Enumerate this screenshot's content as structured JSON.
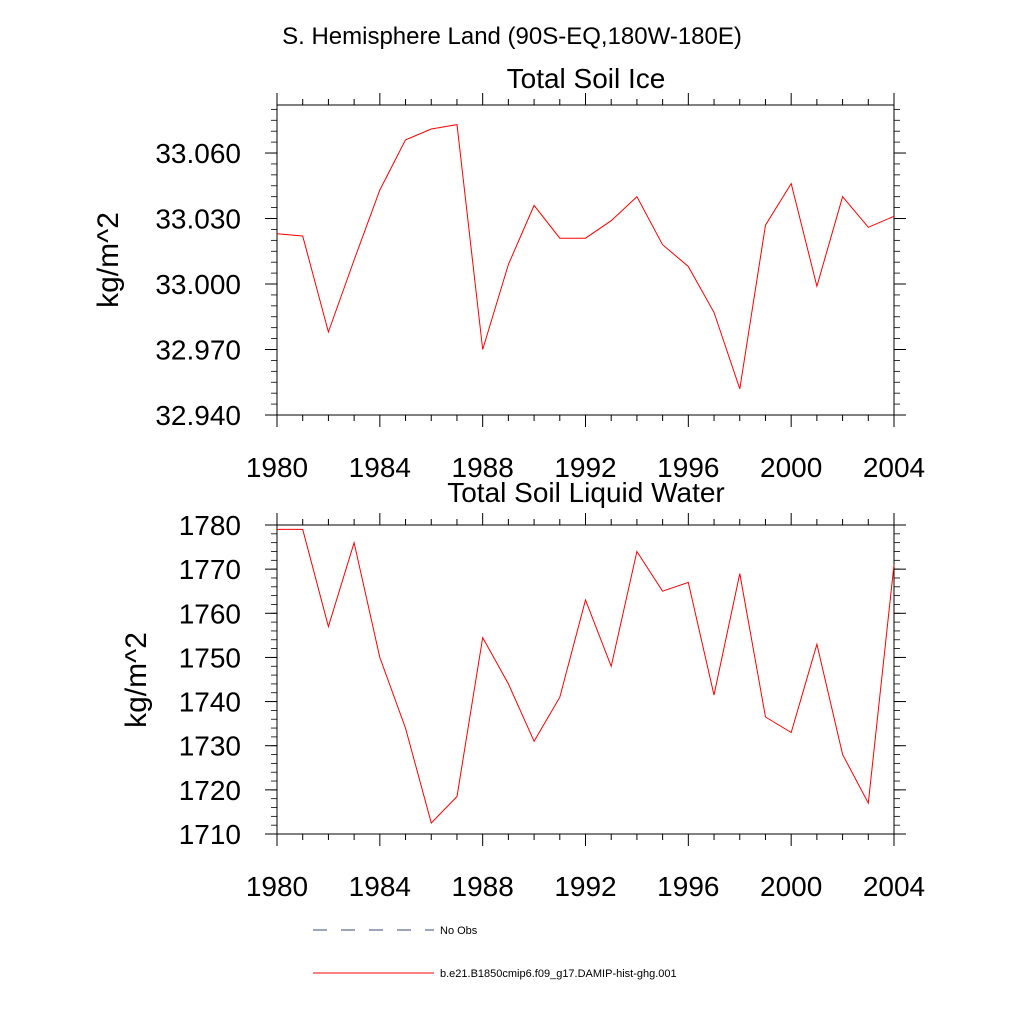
{
  "page": {
    "main_title": "S. Hemisphere Land (90S-EQ,180W-180E)"
  },
  "colors": {
    "model_line": "#ff0000",
    "obs_line": "#3a4a7a",
    "axis": "#000000"
  },
  "chart_data": [
    {
      "type": "line",
      "title": "Total Soil Ice",
      "xlabel": "",
      "ylabel": "kg/m^2",
      "xlim": [
        1980,
        2004
      ],
      "ylim": [
        32.94,
        33.082
      ],
      "x_ticks": [
        "1980",
        "1984",
        "1988",
        "1992",
        "1996",
        "2000",
        "2004"
      ],
      "y_ticks": [
        "32.940",
        "32.970",
        "33.000",
        "33.030",
        "33.060"
      ],
      "y_tick_values": [
        32.94,
        32.97,
        33.0,
        33.03,
        33.06
      ],
      "grid": false,
      "x": [
        1980,
        1981,
        1982,
        1983,
        1984,
        1985,
        1986,
        1987,
        1988,
        1989,
        1990,
        1991,
        1992,
        1993,
        1994,
        1995,
        1996,
        1997,
        1998,
        1999,
        2000,
        2001,
        2002,
        2003,
        2004
      ],
      "series": [
        {
          "name": "b.e21.B1850cmip6.f09_g17.DAMIP-hist-ghg.001",
          "values": [
            33.023,
            33.022,
            32.978,
            33.011,
            33.043,
            33.066,
            33.071,
            33.073,
            32.97,
            33.009,
            33.036,
            33.021,
            33.021,
            33.029,
            33.04,
            33.018,
            33.008,
            32.987,
            32.952,
            33.027,
            33.046,
            32.999,
            33.04,
            33.026,
            33.031
          ]
        }
      ]
    },
    {
      "type": "line",
      "title": "Total Soil Liquid Water",
      "xlabel": "",
      "ylabel": "kg/m^2",
      "xlim": [
        1980,
        2004
      ],
      "ylim": [
        1710,
        1780
      ],
      "x_ticks": [
        "1980",
        "1984",
        "1988",
        "1992",
        "1996",
        "2000",
        "2004"
      ],
      "y_ticks": [
        "1710",
        "1720",
        "1730",
        "1740",
        "1750",
        "1760",
        "1770",
        "1780"
      ],
      "y_tick_values": [
        1710,
        1720,
        1730,
        1740,
        1750,
        1760,
        1770,
        1780
      ],
      "grid": false,
      "x": [
        1980,
        1981,
        1982,
        1983,
        1984,
        1985,
        1986,
        1987,
        1988,
        1989,
        1990,
        1991,
        1992,
        1993,
        1994,
        1995,
        1996,
        1997,
        1998,
        1999,
        2000,
        2001,
        2002,
        2003,
        2004
      ],
      "series": [
        {
          "name": "b.e21.B1850cmip6.f09_g17.DAMIP-hist-ghg.001",
          "values": [
            1779,
            1779,
            1757,
            1776,
            1750,
            1734,
            1712.5,
            1718.5,
            1754.5,
            1744,
            1731,
            1741,
            1763,
            1748,
            1774,
            1765,
            1767,
            1741.5,
            1769,
            1736.5,
            1733,
            1753,
            1728,
            1717,
            1771
          ]
        }
      ]
    }
  ],
  "legend": {
    "placement": "bottom-center",
    "items": [
      {
        "label": "No Obs",
        "style": "dashed"
      },
      {
        "label": "b.e21.B1850cmip6.f09_g17.DAMIP-hist-ghg.001",
        "style": "solid"
      }
    ]
  }
}
